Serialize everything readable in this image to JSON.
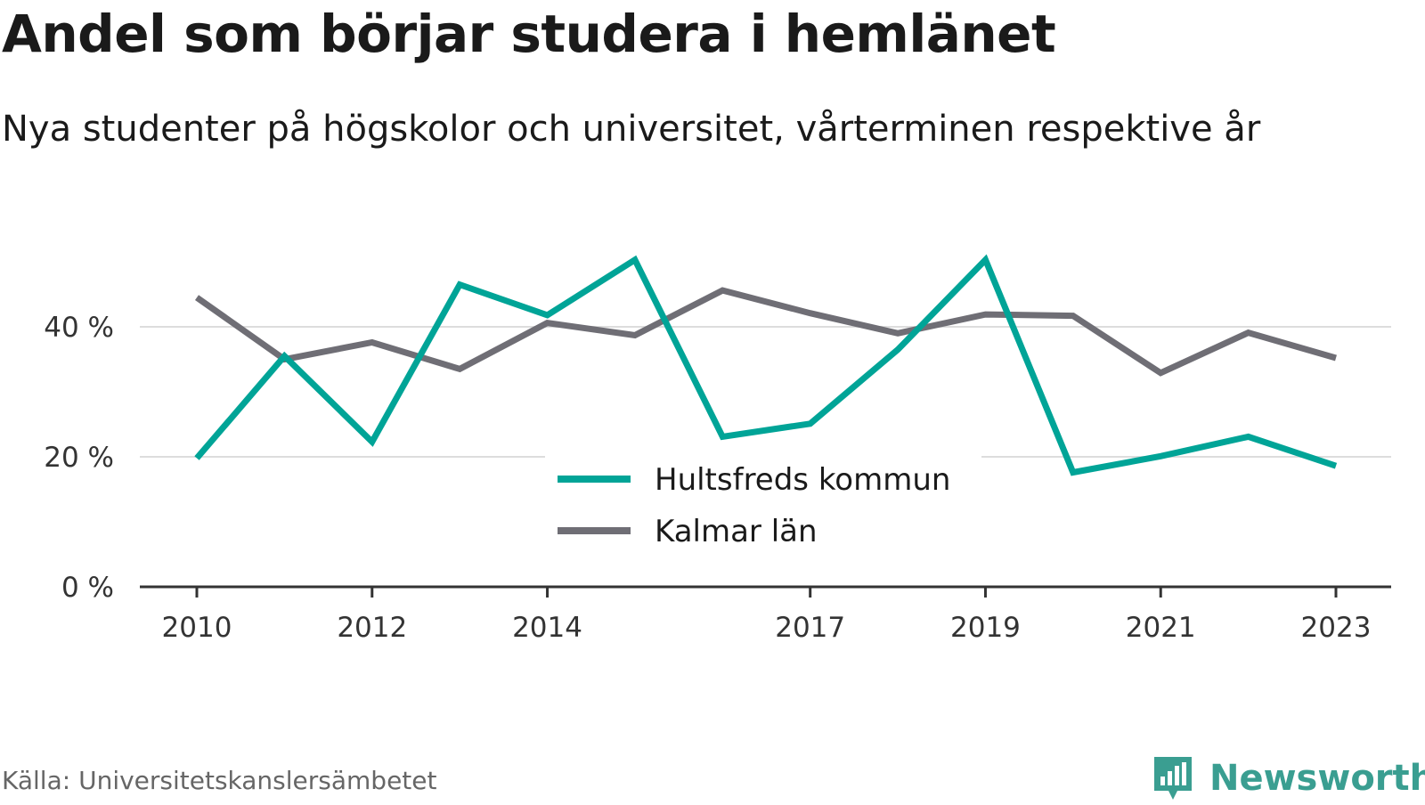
{
  "title": "Andel som börjar studera i hemlänet",
  "subtitle": "Nya studenter på högskolor och universitet, vårterminen respektive år",
  "source": "Källa: Universitetskanslersämbetet",
  "brand": {
    "name": "Newsworthy",
    "icon": "newsworthy-logo-icon",
    "color": "#3a9e91"
  },
  "chart_data": {
    "type": "line",
    "x": [
      2010,
      2011,
      2012,
      2013,
      2014,
      2015,
      2016,
      2017,
      2018,
      2019,
      2020,
      2021,
      2022,
      2023
    ],
    "x_tick_labels": [
      "2010",
      "2012",
      "2014",
      "2017",
      "2019",
      "2021",
      "2023"
    ],
    "y_ticks": [
      0,
      20,
      40
    ],
    "y_tick_labels": [
      "0 %",
      "20 %",
      "40 %"
    ],
    "ylim": [
      0,
      52
    ],
    "grid": true,
    "legend_position": "bottom-center",
    "series": [
      {
        "name": "Hultsfreds kommun",
        "color": "#00a497",
        "values": [
          19.8,
          35.5,
          22.3,
          46.5,
          41.8,
          50.3,
          23.1,
          25.1,
          36.5,
          50.3,
          17.6,
          20.1,
          23.1,
          18.6
        ]
      },
      {
        "name": "Kalmar län",
        "color": "#6f6e75",
        "values": [
          44.5,
          35.0,
          37.6,
          33.5,
          40.6,
          38.7,
          45.6,
          42.1,
          39.0,
          41.9,
          41.7,
          32.9,
          39.1,
          35.2
        ]
      }
    ]
  }
}
